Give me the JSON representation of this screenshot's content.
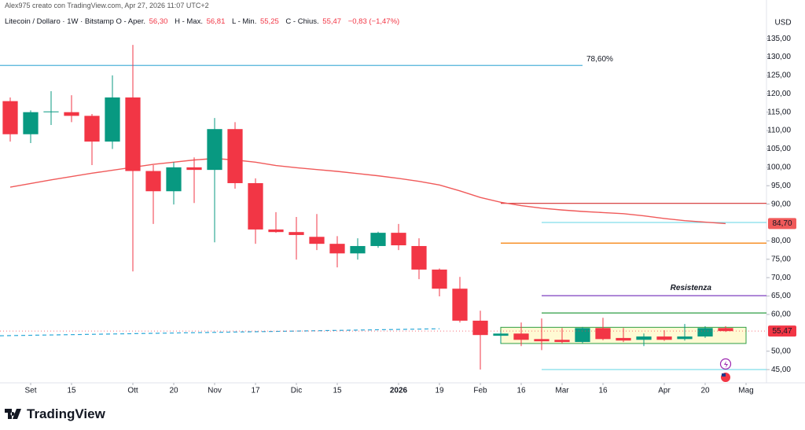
{
  "chart_data": {
    "type": "candlestick",
    "author_line": "Alex975 creato con TradingView.com, Apr 27, 2026 11:07 UTC+2",
    "legend": {
      "symbol": "Litecoin / Dollaro · 1W · Bitstamp",
      "fields": [
        {
          "label": "O - Aper.",
          "value_label": "56,30"
        },
        {
          "label": "H - Max.",
          "value_label": "56,81"
        },
        {
          "label": "L - Min.",
          "value_label": "55,25"
        },
        {
          "label": "C - Chius.",
          "value_label": "55,47"
        }
      ],
      "change": "−0,83 (−1,47%)"
    },
    "currency": "USD",
    "branding": "TradingView",
    "xlim": [
      -0.5,
      37
    ],
    "ylim": [
      41.4,
      145.5
    ],
    "xticks": [
      {
        "value": 1,
        "label": "Set"
      },
      {
        "value": 3,
        "label": "15"
      },
      {
        "value": 6,
        "label": "Ott"
      },
      {
        "value": 8,
        "label": "20"
      },
      {
        "value": 10,
        "label": "Nov"
      },
      {
        "value": 12,
        "label": "17"
      },
      {
        "value": 14,
        "label": "Dic"
      },
      {
        "value": 16,
        "label": "15"
      },
      {
        "value": 19,
        "label": "2026"
      },
      {
        "value": 21,
        "label": "19"
      },
      {
        "value": 23,
        "label": "Feb"
      },
      {
        "value": 25,
        "label": "16"
      },
      {
        "value": 27,
        "label": "Mar"
      },
      {
        "value": 29,
        "label": "16"
      },
      {
        "value": 32,
        "label": "Apr"
      },
      {
        "value": 34,
        "label": "20"
      },
      {
        "value": 36,
        "label": "Mag"
      }
    ],
    "yticks": [
      {
        "value": 45,
        "label": "45,00"
      },
      {
        "value": 50,
        "label": "50,00"
      },
      {
        "value": 60,
        "label": "60,00"
      },
      {
        "value": 65,
        "label": "65,00"
      },
      {
        "value": 70,
        "label": "70,00"
      },
      {
        "value": 75,
        "label": "75,00"
      },
      {
        "value": 80,
        "label": "80,00"
      },
      {
        "value": 90,
        "label": "90,00"
      },
      {
        "value": 95,
        "label": "95,00"
      },
      {
        "value": 100,
        "label": "100,00"
      },
      {
        "value": 105,
        "label": "105,00"
      },
      {
        "value": 110,
        "label": "110,00"
      },
      {
        "value": 115,
        "label": "115,00"
      },
      {
        "value": 120,
        "label": "120,00"
      },
      {
        "value": 125,
        "label": "125,00"
      },
      {
        "value": 130,
        "label": "130,00"
      },
      {
        "value": 135,
        "label": "135,00"
      }
    ],
    "up_color": "#089981",
    "down_color": "#f23645",
    "open": [
      118,
      109,
      115,
      115,
      114,
      107,
      119,
      99,
      93.5,
      100,
      99.3,
      110.4,
      95.7,
      83.1,
      82.4,
      81.1,
      79.2,
      76.6,
      78.6,
      82.2,
      78.6,
      72.2,
      67.0,
      58.3,
      54.2,
      54.8,
      53.3,
      53.1,
      52.5,
      56.3,
      53.6,
      53.1,
      54,
      53.3,
      54,
      56.3
    ],
    "high": [
      119,
      115.5,
      120.7,
      119.6,
      114.5,
      125,
      133.3,
      100.6,
      101.4,
      102.7,
      113.4,
      112.3,
      97,
      87.8,
      86.5,
      87.3,
      81.3,
      80.7,
      82.5,
      84.6,
      80.7,
      72.5,
      70.2,
      61,
      55.5,
      57.8,
      58.9,
      56.3,
      56.6,
      59.1,
      56.3,
      54.8,
      55.7,
      57.4,
      56.8,
      56.81
    ],
    "low": [
      107,
      106.6,
      111.5,
      112.3,
      100.6,
      105,
      71.7,
      84.6,
      89.9,
      90.3,
      79.6,
      94.2,
      79.2,
      82.2,
      74.9,
      77.5,
      72.8,
      74.9,
      78.1,
      77.5,
      69.6,
      64.9,
      57.8,
      45,
      52.1,
      51.4,
      50.3,
      52.1,
      52.2,
      53.0,
      52.5,
      51.4,
      52.8,
      52.9,
      53.6,
      55.25
    ],
    "close": [
      109,
      115,
      115.2,
      114,
      107,
      119,
      99,
      93.5,
      100,
      99.3,
      110.4,
      95.7,
      83.1,
      82.4,
      81.6,
      79.2,
      76.6,
      78.6,
      82.2,
      78.8,
      72.2,
      67.0,
      58.3,
      54.4,
      54.8,
      53.1,
      52.7,
      52.5,
      56.3,
      53.3,
      52.9,
      54,
      53.1,
      54,
      56.3,
      55.47
    ],
    "current_price_label": "55,47",
    "moving_average": {
      "color": "#f05a5a",
      "values": [
        94.6,
        95.6,
        96.6,
        97.5,
        98.4,
        99.2,
        100,
        100.8,
        101.4,
        102,
        102.4,
        102,
        101.4,
        100.5,
        99.9,
        99.4,
        98.9,
        98.3,
        97.7,
        97,
        96.2,
        95.2,
        93.6,
        91.8,
        90.5,
        89.6,
        88.9,
        88.4,
        88,
        87.7,
        87.4,
        86.8,
        86.1,
        85.5,
        85.1,
        84.7
      ],
      "last_label": "84,70"
    },
    "levels": [
      {
        "value": 127.7,
        "color": "#4fb3d9",
        "x0": -0.5,
        "x1": 28.0,
        "label": "78,60%"
      },
      {
        "value": 90.2,
        "color": "#d32f2f",
        "x0": 24,
        "x1": 37
      },
      {
        "value": 85.0,
        "color": "#80deea",
        "x0": 26,
        "x1": 37
      },
      {
        "value": 79.4,
        "color": "#f57c00",
        "x0": 24,
        "x1": 37
      },
      {
        "value": 65.1,
        "color": "#7e3fbf",
        "x0": 26,
        "x1": 37
      },
      {
        "value": 60.4,
        "color": "#2e9e44",
        "x0": 26,
        "x1": 37
      },
      {
        "value": 45,
        "color": "#80deea",
        "x0": 26,
        "x1": 37
      }
    ],
    "annotations": [
      {
        "text": "Resistenza",
        "x": 33.3,
        "value": 67.2,
        "color": "#a05cc8"
      }
    ],
    "trendline": {
      "x": [
        -0.5,
        21
      ],
      "values": [
        54.2,
        56.1
      ],
      "color": "#2aa8d8"
    },
    "box": {
      "x": [
        24,
        36
      ],
      "values": [
        56.5,
        52.1
      ],
      "color": "#2e9e44"
    }
  }
}
